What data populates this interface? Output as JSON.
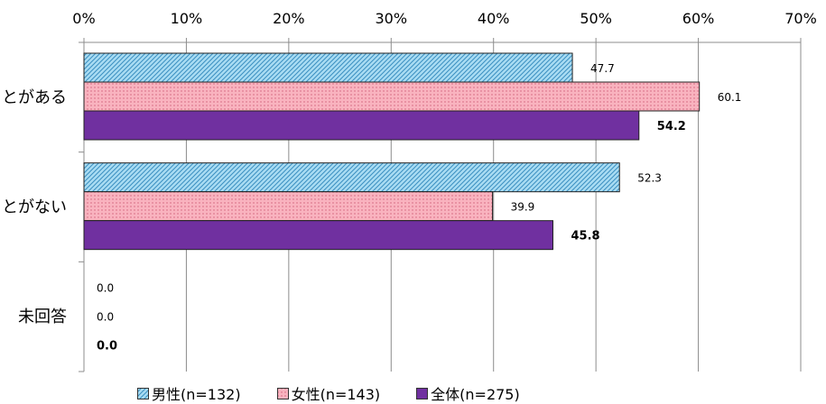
{
  "chart_data": {
    "type": "bar",
    "orientation": "horizontal",
    "categories": [
      "…とがある",
      "…とがない",
      "未回答"
    ],
    "series": [
      {
        "name": "男性(n=132)",
        "values": [
          47.7,
          52.3,
          0.0
        ],
        "color": "#9fd6f0",
        "pattern": "diagonal-hatch"
      },
      {
        "name": "女性(n=143)",
        "values": [
          60.1,
          39.9,
          0.0
        ],
        "color": "#f7a8b4",
        "pattern": "dots"
      },
      {
        "name": "全体(n=275)",
        "values": [
          54.2,
          45.8,
          0.0
        ],
        "color": "#7030a0",
        "pattern": "solid",
        "bold_labels": true
      }
    ],
    "data_labels": [
      [
        "47.7",
        "52.3",
        "0.0"
      ],
      [
        "60.1",
        "39.9",
        "0.0"
      ],
      [
        "54.2",
        "45.8",
        "0.0"
      ]
    ],
    "xlim": [
      0,
      70
    ],
    "x_ticks": [
      "0%",
      "10%",
      "20%",
      "30%",
      "40%",
      "50%",
      "60%",
      "70%"
    ],
    "x_axis_position": "top",
    "grid": true,
    "legend_position": "bottom"
  }
}
